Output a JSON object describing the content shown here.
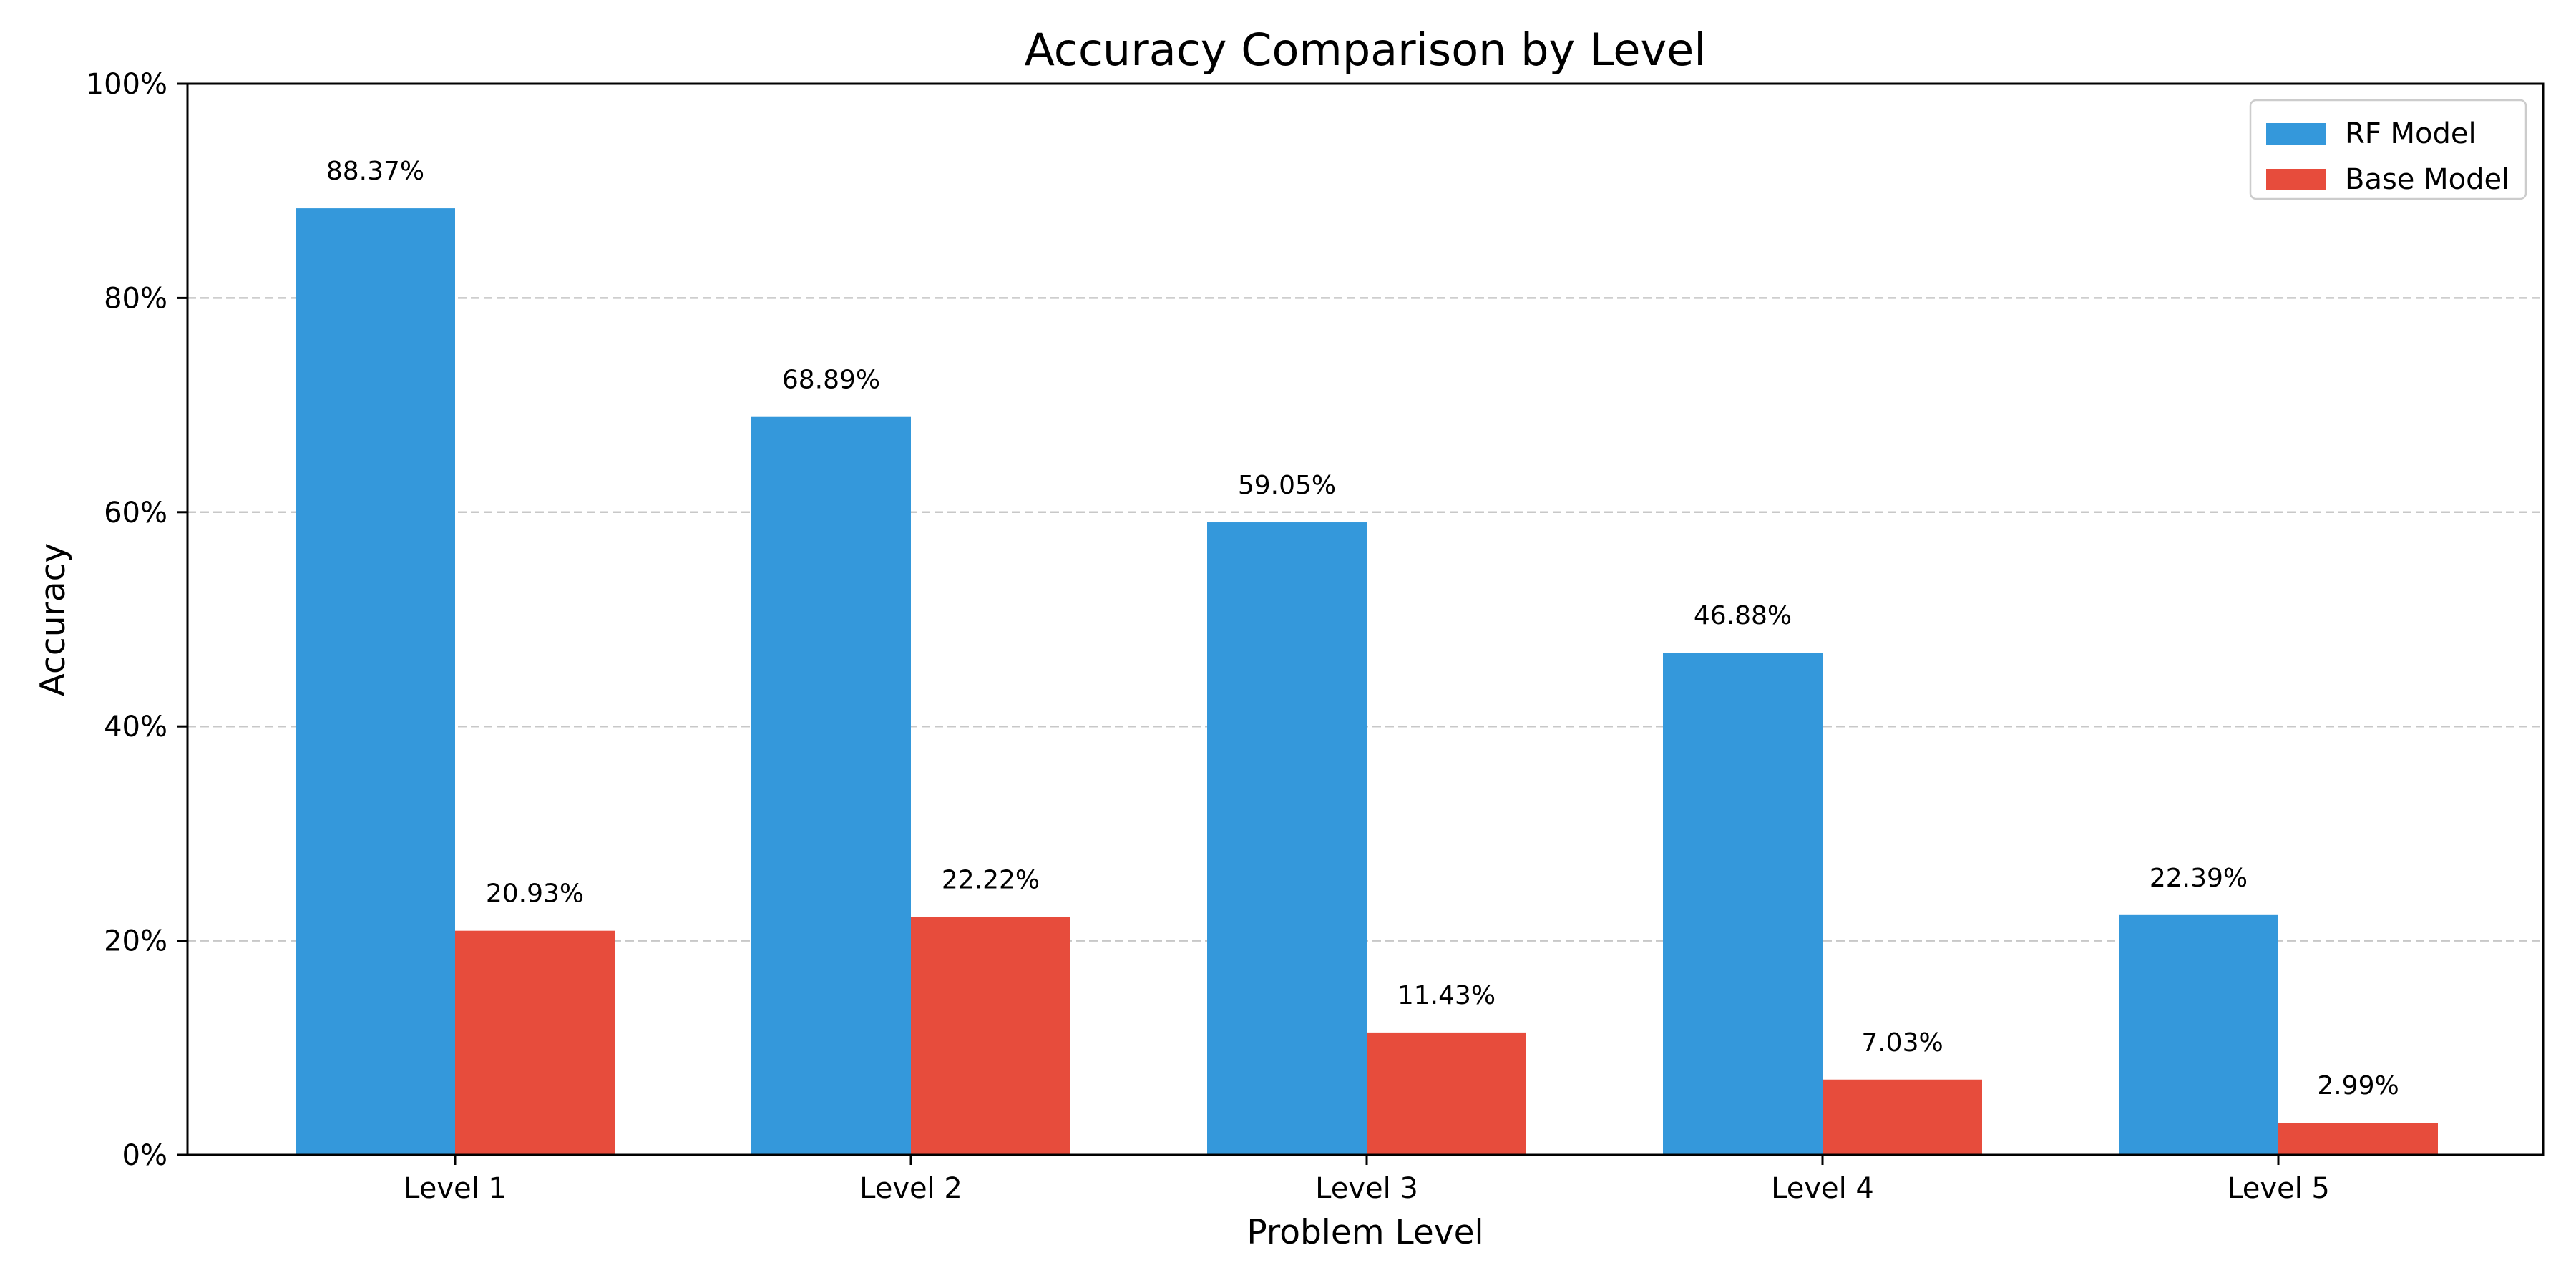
{
  "chart_data": {
    "type": "bar",
    "title": "Accuracy Comparison by Level",
    "xlabel": "Problem Level",
    "ylabel": "Accuracy",
    "categories": [
      "Level 1",
      "Level 2",
      "Level 3",
      "Level 4",
      "Level 5"
    ],
    "series": [
      {
        "name": "RF Model",
        "color": "#3498db",
        "values": [
          88.37,
          68.89,
          59.05,
          46.88,
          22.39
        ],
        "labels": [
          "88.37%",
          "68.89%",
          "59.05%",
          "46.88%",
          "22.39%"
        ]
      },
      {
        "name": "Base Model",
        "color": "#e74c3c",
        "values": [
          20.93,
          22.22,
          11.43,
          7.03,
          2.99
        ],
        "labels": [
          "20.93%",
          "22.22%",
          "11.43%",
          "7.03%",
          "2.99%"
        ]
      }
    ],
    "ylim": [
      0,
      100
    ],
    "yticks": [
      0,
      20,
      40,
      60,
      80,
      100
    ],
    "ytick_labels": [
      "0%",
      "20%",
      "40%",
      "60%",
      "80%",
      "100%"
    ],
    "grid": "y-dashed",
    "legend_position": "top-right"
  }
}
